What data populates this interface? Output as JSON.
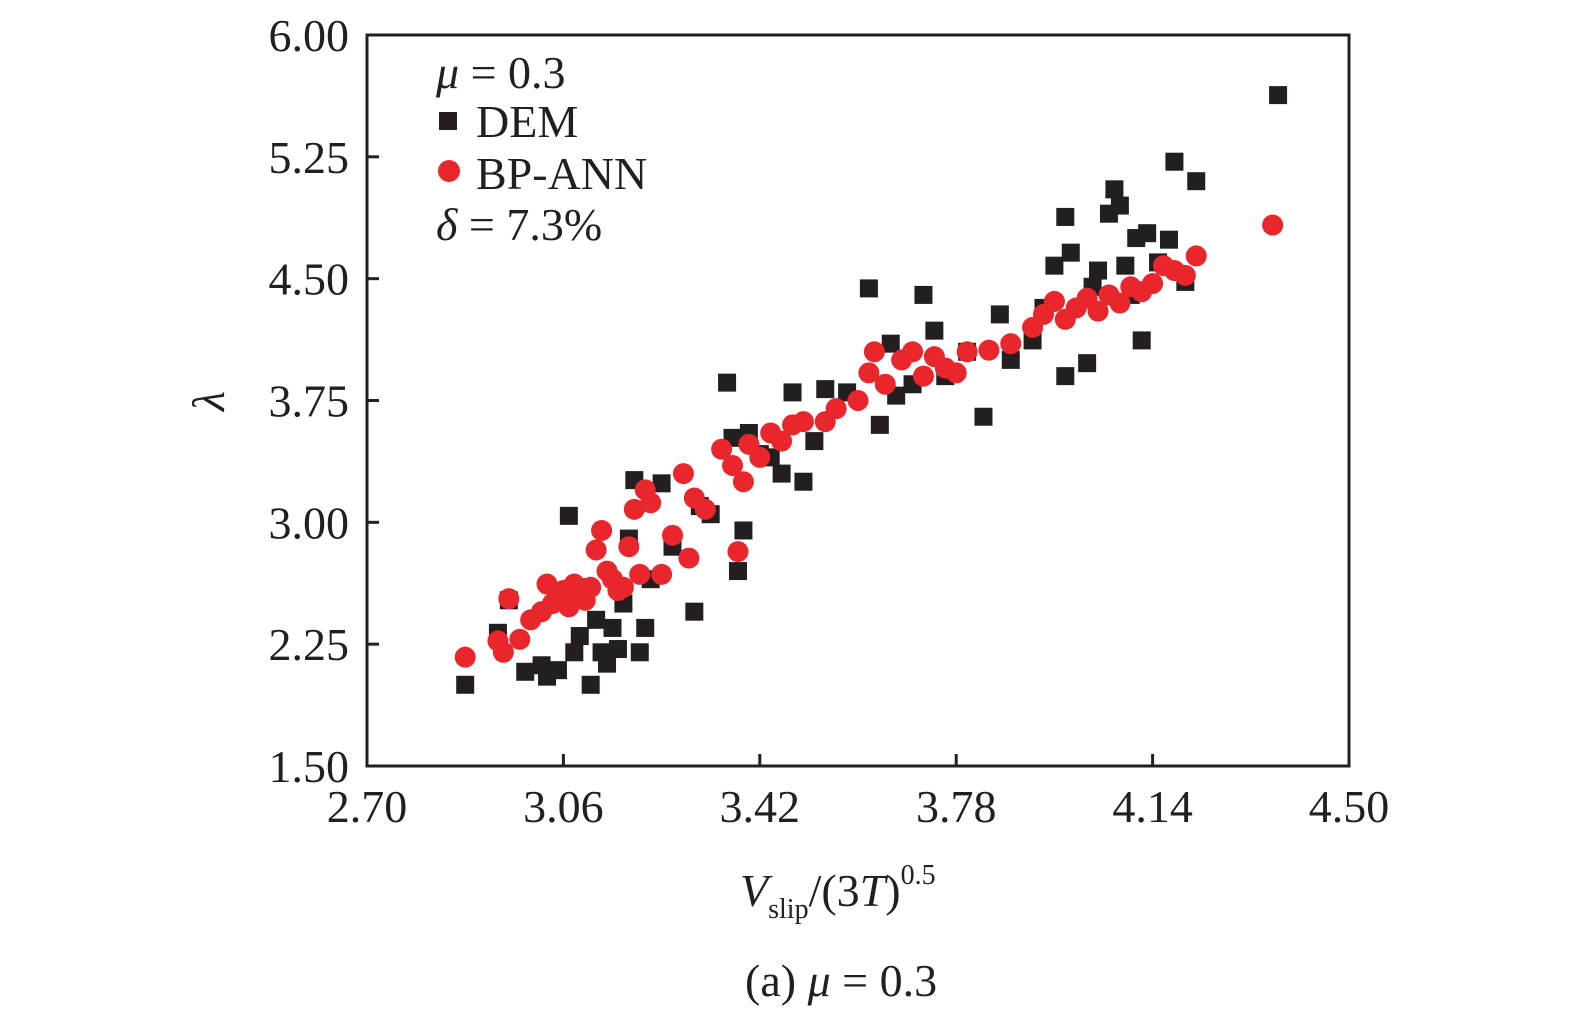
{
  "chart_data": {
    "type": "scatter",
    "caption": {
      "prefix": "(a) ",
      "symbol": "μ",
      "rest": " = 0.3"
    },
    "annotations": {
      "mu": {
        "symbol": "μ",
        "rest": " = 0.3"
      },
      "delta": {
        "symbol": "δ",
        "rest": " = 7.3%"
      }
    },
    "xlabel": {
      "V": "V",
      "slip": "slip",
      "mid": "/(3",
      "T": "T",
      "close": ")",
      "exp": "0.5"
    },
    "ylabel": "λ",
    "xlim": [
      2.7,
      4.5
    ],
    "ylim": [
      1.5,
      6.0
    ],
    "xticks": [
      "2.70",
      "3.06",
      "3.42",
      "3.78",
      "4.14",
      "4.50"
    ],
    "yticks": [
      "1.50",
      "2.25",
      "3.00",
      "3.75",
      "4.50",
      "5.25",
      "6.00"
    ],
    "grid": false,
    "legend_position": "top-left",
    "series": [
      {
        "name": "DEM",
        "marker": "square",
        "color": "#231f20",
        "points": [
          [
            2.88,
            2.0
          ],
          [
            2.94,
            2.32
          ],
          [
            2.96,
            2.52
          ],
          [
            2.99,
            2.08
          ],
          [
            3.02,
            2.12
          ],
          [
            3.03,
            2.05
          ],
          [
            3.05,
            2.09
          ],
          [
            3.07,
            3.04
          ],
          [
            3.08,
            2.2
          ],
          [
            3.09,
            2.3
          ],
          [
            3.1,
            2.6
          ],
          [
            3.11,
            2.0
          ],
          [
            3.12,
            2.4
          ],
          [
            3.13,
            2.2
          ],
          [
            3.14,
            2.13
          ],
          [
            3.15,
            2.35
          ],
          [
            3.16,
            2.22
          ],
          [
            3.17,
            2.5
          ],
          [
            3.18,
            2.9
          ],
          [
            3.19,
            3.26
          ],
          [
            3.2,
            2.2
          ],
          [
            3.21,
            2.35
          ],
          [
            3.22,
            2.65
          ],
          [
            3.24,
            3.24
          ],
          [
            3.26,
            2.85
          ],
          [
            3.3,
            2.45
          ],
          [
            3.31,
            3.1
          ],
          [
            3.33,
            3.05
          ],
          [
            3.36,
            3.86
          ],
          [
            3.37,
            3.52
          ],
          [
            3.38,
            2.7
          ],
          [
            3.39,
            2.95
          ],
          [
            3.4,
            3.55
          ],
          [
            3.42,
            3.42
          ],
          [
            3.44,
            3.4
          ],
          [
            3.46,
            3.3
          ],
          [
            3.48,
            3.8
          ],
          [
            3.5,
            3.25
          ],
          [
            3.52,
            3.5
          ],
          [
            3.54,
            3.82
          ],
          [
            3.58,
            3.8
          ],
          [
            3.62,
            4.44
          ],
          [
            3.64,
            3.6
          ],
          [
            3.66,
            4.1
          ],
          [
            3.67,
            3.78
          ],
          [
            3.7,
            3.85
          ],
          [
            3.72,
            4.4
          ],
          [
            3.74,
            4.18
          ],
          [
            3.76,
            3.9
          ],
          [
            3.8,
            4.05
          ],
          [
            3.83,
            3.65
          ],
          [
            3.86,
            4.28
          ],
          [
            3.88,
            4.0
          ],
          [
            3.92,
            4.12
          ],
          [
            3.94,
            4.32
          ],
          [
            3.96,
            4.58
          ],
          [
            3.98,
            3.9
          ],
          [
            3.98,
            4.88
          ],
          [
            3.99,
            4.66
          ],
          [
            4.02,
            3.98
          ],
          [
            4.03,
            4.45
          ],
          [
            4.04,
            4.55
          ],
          [
            4.06,
            4.9
          ],
          [
            4.07,
            5.05
          ],
          [
            4.08,
            4.95
          ],
          [
            4.09,
            4.58
          ],
          [
            4.1,
            4.4
          ],
          [
            4.11,
            4.75
          ],
          [
            4.12,
            4.12
          ],
          [
            4.13,
            4.78
          ],
          [
            4.15,
            4.6
          ],
          [
            4.17,
            4.74
          ],
          [
            4.18,
            5.22
          ],
          [
            4.2,
            4.48
          ],
          [
            4.22,
            5.1
          ],
          [
            4.37,
            5.63
          ]
        ]
      },
      {
        "name": "BP-ANN",
        "marker": "circle",
        "color": "#e8262b",
        "points": [
          [
            2.88,
            2.17
          ],
          [
            2.94,
            2.27
          ],
          [
            2.95,
            2.2
          ],
          [
            2.96,
            2.53
          ],
          [
            2.98,
            2.28
          ],
          [
            3.0,
            2.4
          ],
          [
            3.02,
            2.45
          ],
          [
            3.03,
            2.62
          ],
          [
            3.04,
            2.5
          ],
          [
            3.05,
            2.55
          ],
          [
            3.06,
            2.58
          ],
          [
            3.07,
            2.48
          ],
          [
            3.08,
            2.62
          ],
          [
            3.09,
            2.55
          ],
          [
            3.1,
            2.52
          ],
          [
            3.11,
            2.6
          ],
          [
            3.12,
            2.83
          ],
          [
            3.13,
            2.95
          ],
          [
            3.14,
            2.7
          ],
          [
            3.15,
            2.65
          ],
          [
            3.16,
            2.58
          ],
          [
            3.17,
            2.6
          ],
          [
            3.18,
            2.85
          ],
          [
            3.19,
            3.08
          ],
          [
            3.2,
            2.68
          ],
          [
            3.21,
            3.2
          ],
          [
            3.22,
            3.12
          ],
          [
            3.24,
            2.68
          ],
          [
            3.26,
            2.92
          ],
          [
            3.28,
            3.3
          ],
          [
            3.29,
            2.78
          ],
          [
            3.3,
            3.15
          ],
          [
            3.32,
            3.08
          ],
          [
            3.35,
            3.45
          ],
          [
            3.37,
            3.35
          ],
          [
            3.38,
            2.82
          ],
          [
            3.39,
            3.25
          ],
          [
            3.4,
            3.48
          ],
          [
            3.42,
            3.4
          ],
          [
            3.44,
            3.55
          ],
          [
            3.46,
            3.5
          ],
          [
            3.48,
            3.6
          ],
          [
            3.5,
            3.62
          ],
          [
            3.54,
            3.62
          ],
          [
            3.56,
            3.7
          ],
          [
            3.6,
            3.75
          ],
          [
            3.62,
            3.92
          ],
          [
            3.63,
            4.05
          ],
          [
            3.65,
            3.85
          ],
          [
            3.68,
            4.0
          ],
          [
            3.7,
            4.05
          ],
          [
            3.72,
            3.9
          ],
          [
            3.74,
            4.02
          ],
          [
            3.76,
            3.95
          ],
          [
            3.78,
            3.92
          ],
          [
            3.8,
            4.05
          ],
          [
            3.84,
            4.06
          ],
          [
            3.88,
            4.1
          ],
          [
            3.92,
            4.2
          ],
          [
            3.94,
            4.28
          ],
          [
            3.96,
            4.36
          ],
          [
            3.98,
            4.25
          ],
          [
            4.0,
            4.32
          ],
          [
            4.02,
            4.38
          ],
          [
            4.04,
            4.3
          ],
          [
            4.06,
            4.4
          ],
          [
            4.08,
            4.35
          ],
          [
            4.1,
            4.45
          ],
          [
            4.12,
            4.42
          ],
          [
            4.14,
            4.47
          ],
          [
            4.16,
            4.58
          ],
          [
            4.18,
            4.55
          ],
          [
            4.2,
            4.52
          ],
          [
            4.22,
            4.64
          ],
          [
            4.36,
            4.83
          ]
        ]
      }
    ]
  }
}
